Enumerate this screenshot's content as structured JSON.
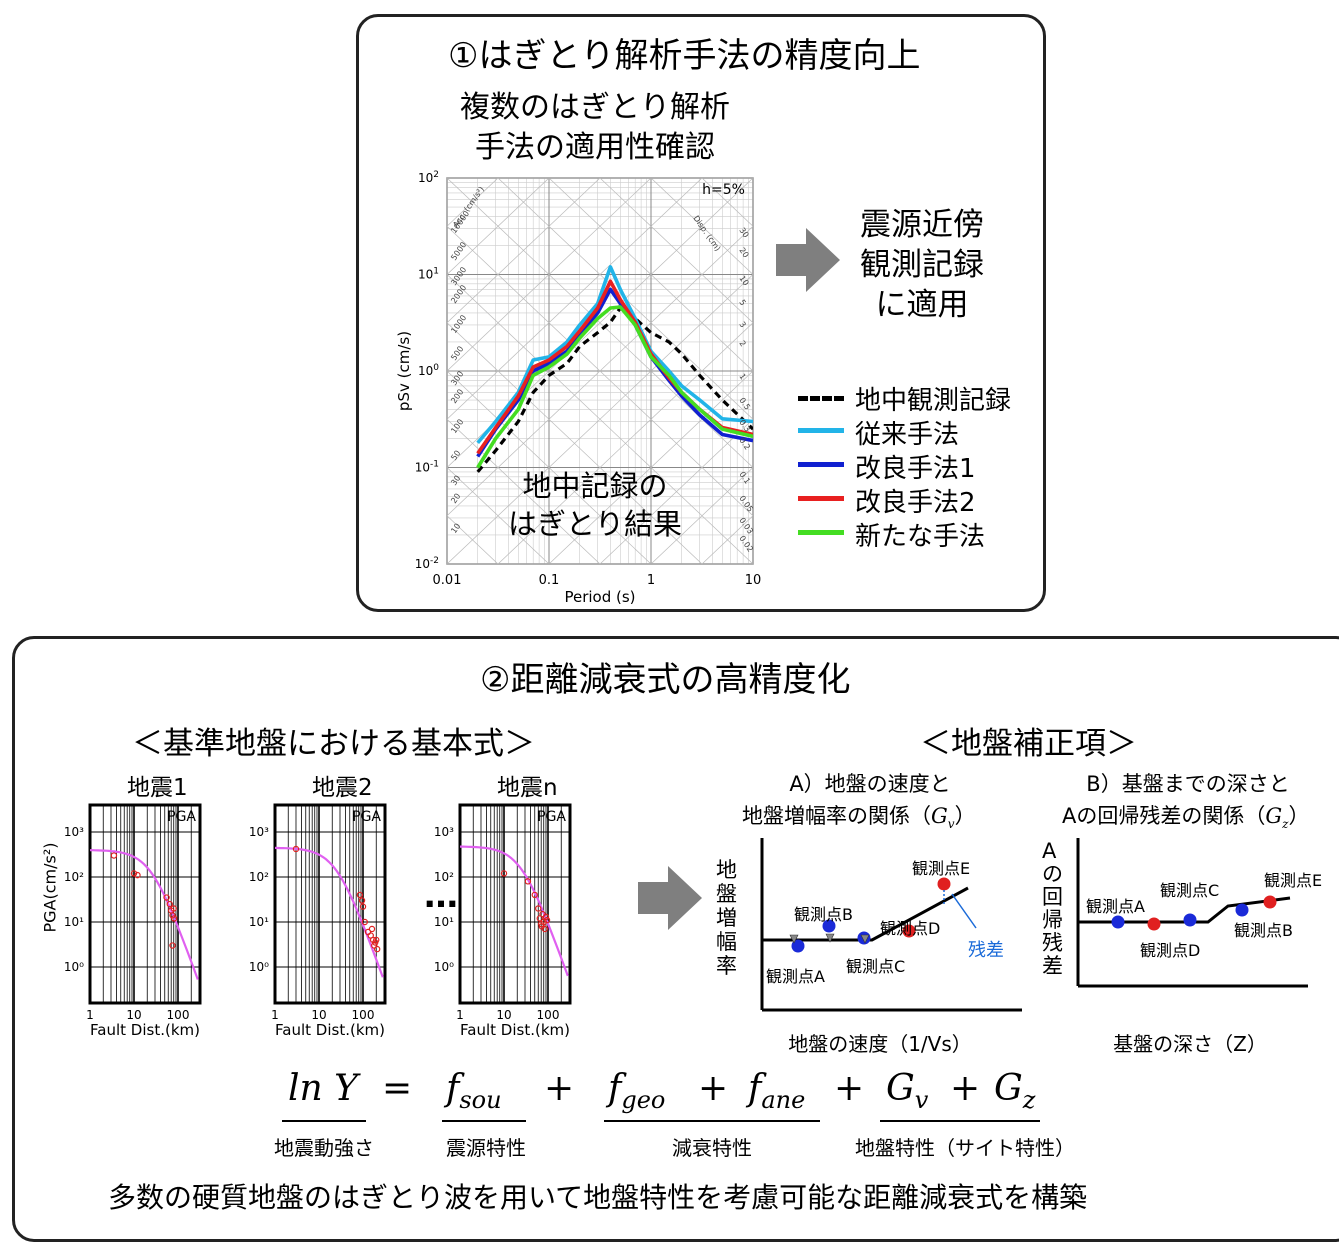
{
  "panel1": {
    "title": "①はぎとり解析手法の精度向上",
    "subtitle_line1": "複数のはぎとり解析",
    "subtitle_line2": "手法の適用性確認",
    "arrow_text_line1": "震源近傍",
    "arrow_text_line2": "観測記録",
    "arrow_text_line3": "に適用",
    "inner_text_line1": "地中記録の",
    "inner_text_line2": "はぎとり結果"
  },
  "chart_data": {
    "type": "line",
    "xscale": "log",
    "yscale": "log",
    "xlabel": "Period (s)",
    "ylabel": "pSv (cm/s)",
    "xlim": [
      0.01,
      10
    ],
    "ylim": [
      0.01,
      100
    ],
    "x_ticks": [
      "0.01",
      "0.1",
      "1",
      "10"
    ],
    "y_ticks": [
      "10-2",
      "10-1",
      "100",
      "101",
      "102"
    ],
    "annotation": "h=5%",
    "acc_label": "Acc. (cm/s²)",
    "disp_label": "Disp. (cm)",
    "acc_ticks": [
      "10000",
      "5000",
      "3000",
      "2000",
      "1000",
      "500",
      "300",
      "200",
      "100",
      "50",
      "30",
      "20",
      "10"
    ],
    "disp_ticks": [
      "30",
      "20",
      "10",
      "5",
      "3",
      "2",
      "1",
      "0.5",
      "0.3",
      "0.2",
      "0.1",
      "0.05",
      "0.03",
      "0.02"
    ],
    "x": [
      0.02,
      0.03,
      0.05,
      0.07,
      0.1,
      0.15,
      0.2,
      0.3,
      0.4,
      0.5,
      0.7,
      1.0,
      1.5,
      2.0,
      3.0,
      5.0,
      10.0
    ],
    "series": [
      {
        "name": "地中観測記録",
        "color": "#000000",
        "dash": true,
        "values": [
          0.09,
          0.15,
          0.3,
          0.6,
          0.9,
          1.2,
          1.8,
          2.5,
          3.2,
          4.5,
          3.5,
          2.5,
          2.0,
          1.5,
          0.9,
          0.5,
          0.25
        ]
      },
      {
        "name": "従来手法",
        "color": "#22b4e8",
        "dash": false,
        "values": [
          0.18,
          0.3,
          0.6,
          1.3,
          1.4,
          2.0,
          3.0,
          5.0,
          12.0,
          7.0,
          3.5,
          1.6,
          1.0,
          0.7,
          0.5,
          0.32,
          0.3
        ]
      },
      {
        "name": "改良手法1",
        "color": "#1020d0",
        "dash": false,
        "values": [
          0.13,
          0.25,
          0.5,
          1.0,
          1.2,
          1.6,
          2.4,
          4.0,
          7.0,
          5.0,
          3.0,
          1.4,
          0.8,
          0.55,
          0.35,
          0.22,
          0.19
        ]
      },
      {
        "name": "改良手法2",
        "color": "#e82020",
        "dash": false,
        "values": [
          0.14,
          0.26,
          0.55,
          1.1,
          1.3,
          1.8,
          2.6,
          4.5,
          8.5,
          5.5,
          3.2,
          1.5,
          0.85,
          0.6,
          0.4,
          0.26,
          0.22
        ]
      },
      {
        "name": "新たな手法",
        "color": "#44dd22",
        "dash": false,
        "values": [
          0.1,
          0.2,
          0.4,
          0.9,
          1.1,
          1.5,
          2.2,
          3.5,
          4.5,
          4.6,
          3.0,
          1.4,
          0.9,
          0.6,
          0.4,
          0.25,
          0.21
        ]
      }
    ]
  },
  "panel2": {
    "title": "②距離減衰式の高精度化",
    "left_heading": "＜基準地盤における基本式＞",
    "right_heading": "＜地盤補正項＞",
    "quake_titles": [
      "地震1",
      "地震2",
      "地震n"
    ],
    "pga_label": "PGA",
    "pga_axis_label": "PGA(cm/s²)",
    "fault_axis_label": "Fault Dist.(km)",
    "pga_y_ticks": [
      "10³",
      "10²",
      "10¹",
      "10⁰"
    ],
    "pga_x_ticks": [
      "1",
      "10",
      "100"
    ],
    "ellipsis": "…",
    "A_title_line1": "A）地盤の速度と",
    "A_title_line2": "地盤増幅率の関係（",
    "A_title_var": "G",
    "A_title_sub": "v",
    "A_title_close": "）",
    "A_ylabel": "地盤増幅率",
    "A_xlabel": "地盤の速度（1/Vs）",
    "A_points": [
      "観測点A",
      "観測点B",
      "観測点C",
      "観測点D",
      "観測点E"
    ],
    "A_residual": "残差",
    "B_title_line1": "B）基盤までの深さと",
    "B_title_line2": "Aの回帰残差の関係（",
    "B_title_var": "G",
    "B_title_sub": "z",
    "B_title_close": "）",
    "B_ylabel": "Aの回帰残差",
    "B_xlabel": "基盤の深さ（Z）",
    "B_points": [
      "観測点A",
      "観測点C",
      "観測点D",
      "観測点B",
      "観測点E"
    ],
    "eq": {
      "lhs": "ln Y",
      "equals": "=",
      "plus": "+",
      "f": "f",
      "sou": "sou",
      "geo": "geo",
      "ane": "ane",
      "G": "G",
      "v": "v",
      "z": "z",
      "lbl_lhs": "地震動強さ",
      "lbl_sou": "震源特性",
      "lbl_att": "減衰特性",
      "lbl_site": "地盤特性（サイト特性）"
    },
    "bottom_text": "多数の硬質地盤のはぎとり波を用いて地盤特性を考慮可能な距離減衰式を構築"
  },
  "colors": {
    "blue_point": "#1a2ad8",
    "red_point": "#e02020",
    "grey_arrow": "#7f7f7f",
    "curve_magenta": "#e060f0",
    "residual_blue": "#1a6ad8"
  }
}
